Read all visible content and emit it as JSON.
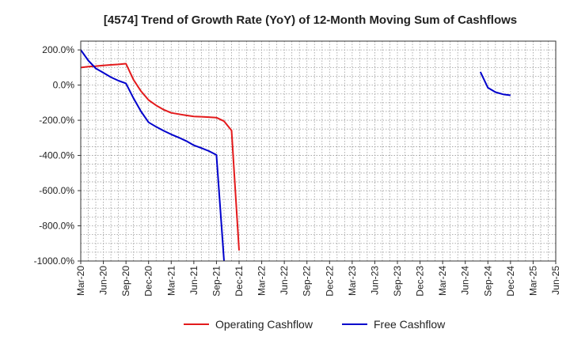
{
  "chart_data": {
    "type": "line",
    "title": "[4574]  Trend of Growth Rate (YoY) of 12-Month Moving Sum of Cashflows",
    "xlabel": "",
    "ylabel": "",
    "ylim": [
      -1000,
      250
    ],
    "grid": true,
    "legend_position": "bottom-center",
    "x_tick_labels": [
      "Mar-20",
      "Jun-20",
      "Sep-20",
      "Dec-20",
      "Mar-21",
      "Jun-21",
      "Sep-21",
      "Dec-21",
      "Mar-22",
      "Jun-22",
      "Sep-22",
      "Dec-22",
      "Mar-23",
      "Jun-23",
      "Sep-23",
      "Dec-23",
      "Mar-24",
      "Jun-24",
      "Sep-24",
      "Dec-24",
      "Mar-25",
      "Jun-25"
    ],
    "y_ticks": [
      200,
      0,
      -200,
      -400,
      -600,
      -800,
      -1000
    ],
    "y_tick_labels": [
      "200.0%",
      "0.0%",
      "-200.0%",
      "-400.0%",
      "-600.0%",
      "-800.0%",
      "-1000.0%"
    ],
    "series": [
      {
        "name": "Operating Cashflow",
        "color": "#e31a1c",
        "values": [
          [
            "Mar-20",
            100
          ],
          [
            "Apr-20",
            105
          ],
          [
            "May-20",
            108
          ],
          [
            "Jun-20",
            112
          ],
          [
            "Jul-20",
            115
          ],
          [
            "Aug-20",
            118
          ],
          [
            "Sep-20",
            122
          ],
          [
            "Oct-20",
            30
          ],
          [
            "Nov-20",
            -35
          ],
          [
            "Dec-20",
            -85
          ],
          [
            "Jan-21",
            -115
          ],
          [
            "Feb-21",
            -140
          ],
          [
            "Mar-21",
            -158
          ],
          [
            "Apr-21",
            -165
          ],
          [
            "May-21",
            -172
          ],
          [
            "Jun-21",
            -178
          ],
          [
            "Jul-21",
            -180
          ],
          [
            "Aug-21",
            -182
          ],
          [
            "Sep-21",
            -185
          ],
          [
            "Oct-21",
            -205
          ],
          [
            "Nov-21",
            -258
          ],
          [
            "Dec-21",
            -940
          ]
        ]
      },
      {
        "name": "Free Cashflow",
        "color": "#0000cc",
        "segments": [
          [
            [
              "Mar-20",
              200
            ],
            [
              "Apr-20",
              140
            ],
            [
              "May-20",
              95
            ],
            [
              "Jun-20",
              70
            ],
            [
              "Jul-20",
              45
            ],
            [
              "Aug-20",
              25
            ],
            [
              "Sep-20",
              10
            ],
            [
              "Oct-20",
              -75
            ],
            [
              "Nov-20",
              -150
            ],
            [
              "Dec-20",
              -212
            ],
            [
              "Jan-21",
              -237
            ],
            [
              "Feb-21",
              -260
            ],
            [
              "Mar-21",
              -280
            ],
            [
              "Apr-21",
              -298
            ],
            [
              "May-21",
              -318
            ],
            [
              "Jun-21",
              -342
            ],
            [
              "Jul-21",
              -358
            ],
            [
              "Aug-21",
              -375
            ],
            [
              "Sep-21",
              -397
            ],
            [
              "Oct-21",
              -1000
            ]
          ],
          [
            [
              "Aug-24",
              75
            ],
            [
              "Sep-24",
              -15
            ],
            [
              "Oct-24",
              -40
            ],
            [
              "Nov-24",
              -52
            ],
            [
              "Dec-24",
              -58
            ]
          ]
        ]
      }
    ]
  }
}
